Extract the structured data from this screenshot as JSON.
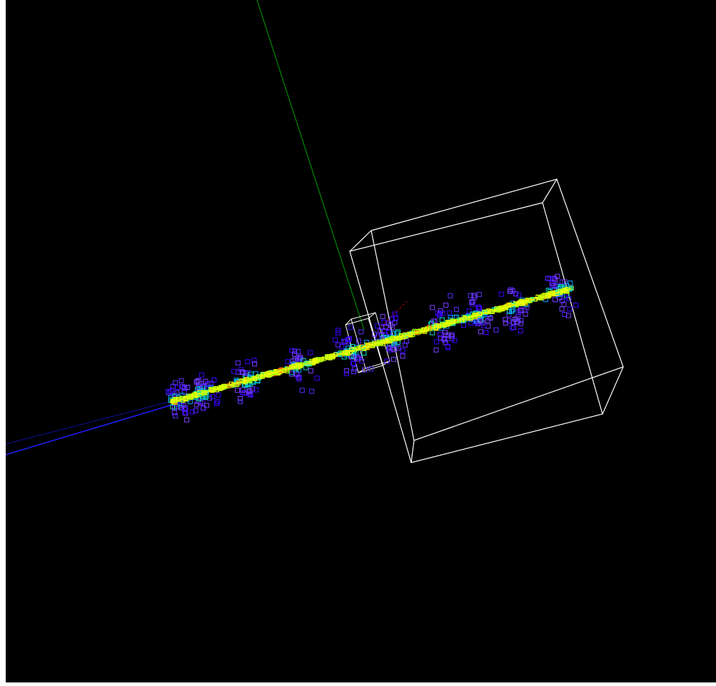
{
  "viewer": {
    "background_color": "#000000",
    "frame_color": "#ffffff"
  },
  "axes": [
    {
      "name": "x-axis",
      "color": "#ff0000"
    },
    {
      "name": "y-axis",
      "color": "#00a000"
    },
    {
      "name": "z-axis",
      "color": "#0000ff"
    }
  ],
  "volumes": [
    {
      "name": "world-volume",
      "color": "#ffffff"
    },
    {
      "name": "target-volume",
      "color": "#ffffff"
    }
  ],
  "hit_palette": [
    "#3a00ff",
    "#5a2cff",
    "#7a40ff",
    "#00a0ff",
    "#00e0c0",
    "#a0ff00",
    "#e8ff00",
    "#ff6000"
  ]
}
